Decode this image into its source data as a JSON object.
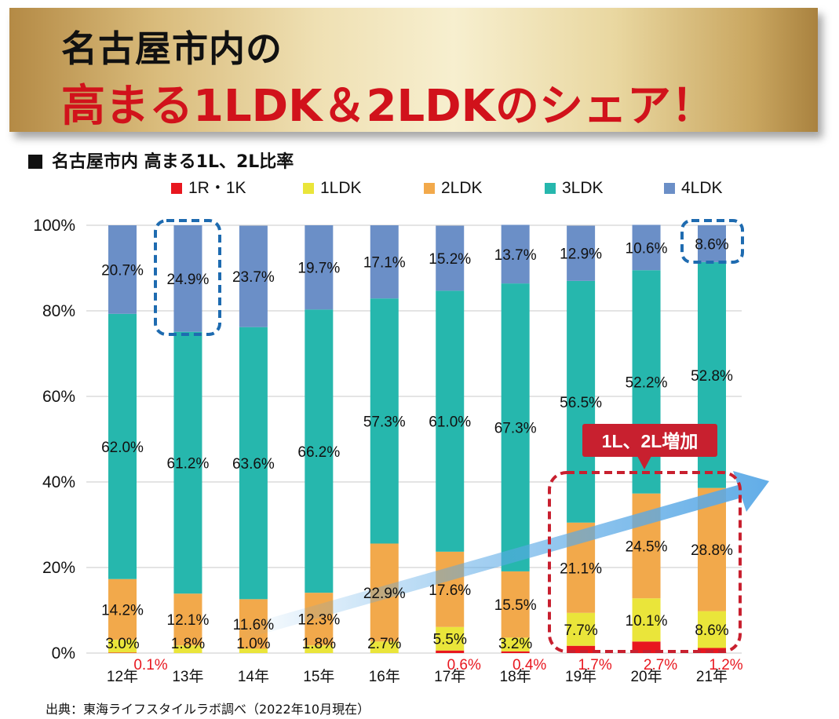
{
  "banner": {
    "line1": "名古屋市内の",
    "line2": "高まる1LDK＆2LDKのシェア！"
  },
  "subtitle": "名古屋市内 高まる1L、2L比率",
  "source": "出典：東海ライフスタイルラボ調べ（2022年10月現在）",
  "callout": "1L、2L増加",
  "colors": {
    "1R・1K": "#e8171f",
    "1LDK": "#eae53a",
    "2LDK": "#f2a94b",
    "3LDK": "#26b7ad",
    "4LDK": "#6b8fc7",
    "accent_red": "#c8202f",
    "highlight_blue": "#1e6bb0",
    "arrow": "#5aa9e6"
  },
  "chart_data": {
    "type": "bar",
    "stacked": true,
    "title": "名古屋市内 高まる1L、2L比率",
    "categories": [
      "12年",
      "13年",
      "14年",
      "15年",
      "16年",
      "17年",
      "18年",
      "19年",
      "20年",
      "21年"
    ],
    "series": [
      {
        "name": "1R・1K",
        "values": [
          0.1,
          0,
          0,
          0,
          0,
          0.6,
          0.4,
          1.7,
          2.7,
          1.2
        ],
        "labels": [
          "0.1%",
          "",
          "",
          "",
          "",
          "0.6%",
          "0.4%",
          "1.7%",
          "2.7%",
          "1.2%"
        ]
      },
      {
        "name": "1LDK",
        "values": [
          3.0,
          1.8,
          1.0,
          1.8,
          2.7,
          5.5,
          3.2,
          7.7,
          10.1,
          8.6
        ],
        "labels": [
          "3.0%",
          "1.8%",
          "1.0%",
          "1.8%",
          "2.7%",
          "5.5%",
          "3.2%",
          "7.7%",
          "10.1%",
          "8.6%"
        ]
      },
      {
        "name": "2LDK",
        "values": [
          14.2,
          12.1,
          11.6,
          12.3,
          22.9,
          17.6,
          15.5,
          21.1,
          24.5,
          28.8
        ],
        "labels": [
          "14.2%",
          "12.1%",
          "11.6%",
          "12.3%",
          "22.9%",
          "17.6%",
          "15.5%",
          "21.1%",
          "24.5%",
          "28.8%"
        ]
      },
      {
        "name": "3LDK",
        "values": [
          62.0,
          61.2,
          63.6,
          66.2,
          57.3,
          61.0,
          67.3,
          56.5,
          52.2,
          52.8
        ],
        "labels": [
          "62.0%",
          "61.2%",
          "63.6%",
          "66.2%",
          "57.3%",
          "61.0%",
          "67.3%",
          "56.5%",
          "52.2%",
          "52.8%"
        ]
      },
      {
        "name": "4LDK",
        "values": [
          20.7,
          24.9,
          23.7,
          19.7,
          17.1,
          15.2,
          13.7,
          12.9,
          10.6,
          8.6
        ],
        "labels": [
          "20.7%",
          "24.9%",
          "23.7%",
          "19.7%",
          "17.1%",
          "15.2%",
          "13.7%",
          "12.9%",
          "10.6%",
          "8.6%"
        ]
      }
    ],
    "yticks": [
      "0%",
      "20%",
      "40%",
      "60%",
      "80%",
      "100%"
    ],
    "ylim": [
      0,
      100
    ],
    "legend_position": "top",
    "grid": true
  }
}
